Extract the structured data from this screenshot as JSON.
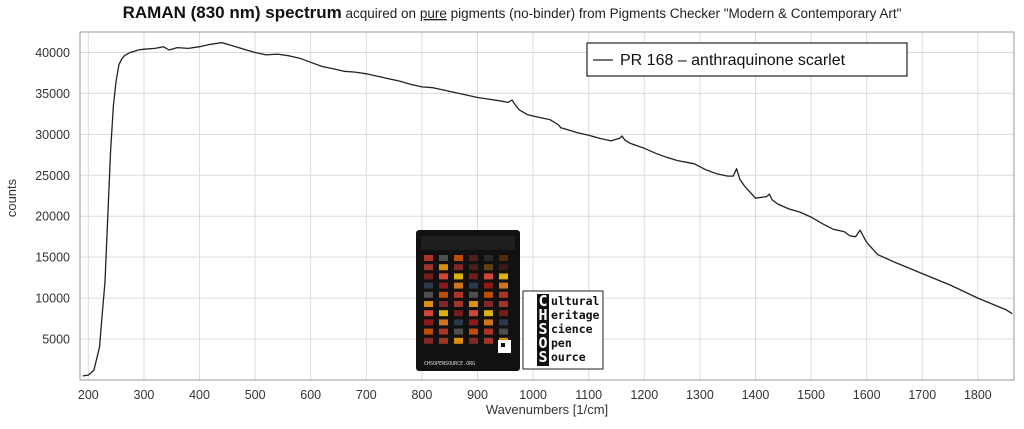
{
  "title": {
    "bold": "RAMAN (830 nm) spectrum",
    "pre": " acquired on ",
    "underlined": "pure",
    "post": " pigments (no-binder) from Pigments Checker \"Modern & Contemporary Art\""
  },
  "legend": {
    "label": "PR 168 – anthraquinone scarlet",
    "placement": "top-right"
  },
  "logo": {
    "letters": [
      "C",
      "H",
      "S",
      "O",
      "S"
    ],
    "words": [
      "ultural",
      "eritage",
      "cience",
      "pen",
      "ource"
    ],
    "checker_caption": "CHSOPENSOURCE.ORG"
  },
  "colors": {
    "line": "#222222",
    "grid": "#dcdcdc",
    "axis": "#999999"
  },
  "chart_data": {
    "type": "line",
    "xlabel": "Wavenumbers [1/cm]",
    "ylabel": "counts",
    "xlim": [
      185,
      1865
    ],
    "ylim": [
      0,
      42500
    ],
    "grid": true,
    "x_ticks": [
      200,
      300,
      400,
      500,
      600,
      700,
      800,
      900,
      1000,
      1100,
      1200,
      1300,
      1400,
      1500,
      1600,
      1700,
      1800
    ],
    "y_ticks": [
      5000,
      10000,
      15000,
      20000,
      25000,
      30000,
      35000,
      40000
    ],
    "series": [
      {
        "name": "PR 168 – anthraquinone scarlet",
        "x": [
          190,
          200,
          210,
          220,
          225,
          230,
          235,
          240,
          245,
          250,
          255,
          260,
          265,
          270,
          275,
          280,
          290,
          300,
          320,
          335,
          345,
          360,
          380,
          400,
          420,
          440,
          460,
          480,
          500,
          520,
          540,
          560,
          580,
          600,
          620,
          640,
          660,
          680,
          700,
          720,
          740,
          760,
          780,
          800,
          820,
          840,
          860,
          880,
          900,
          920,
          940,
          955,
          962,
          968,
          975,
          990,
          1010,
          1030,
          1045,
          1050,
          1060,
          1080,
          1100,
          1120,
          1140,
          1155,
          1160,
          1165,
          1175,
          1200,
          1220,
          1240,
          1260,
          1275,
          1290,
          1310,
          1330,
          1350,
          1360,
          1366,
          1372,
          1380,
          1400,
          1420,
          1425,
          1430,
          1440,
          1460,
          1480,
          1500,
          1520,
          1540,
          1560,
          1570,
          1580,
          1588,
          1600,
          1620,
          1650,
          1700,
          1750,
          1800,
          1850,
          1862
        ],
        "values": [
          500,
          600,
          1200,
          4000,
          8000,
          12000,
          20000,
          28000,
          33500,
          36500,
          38500,
          39200,
          39600,
          39800,
          40000,
          40100,
          40300,
          40400,
          40500,
          40700,
          40300,
          40600,
          40500,
          40700,
          41000,
          41200,
          40800,
          40400,
          40000,
          39700,
          39800,
          39600,
          39300,
          38800,
          38300,
          38000,
          37700,
          37600,
          37400,
          37100,
          36800,
          36500,
          36100,
          35800,
          35700,
          35400,
          35100,
          34800,
          34500,
          34300,
          34100,
          33900,
          34200,
          33600,
          33000,
          32400,
          32100,
          31800,
          31200,
          30800,
          30600,
          30200,
          29900,
          29500,
          29200,
          29500,
          29800,
          29300,
          28900,
          28300,
          27700,
          27200,
          26800,
          26600,
          26400,
          25700,
          25200,
          24900,
          24900,
          25800,
          24500,
          23700,
          22200,
          22400,
          22700,
          22000,
          21500,
          20900,
          20500,
          19900,
          19100,
          18400,
          18100,
          17600,
          17500,
          18300,
          16800,
          15300,
          14400,
          13000,
          11600,
          10000,
          8600,
          8100
        ]
      }
    ]
  }
}
